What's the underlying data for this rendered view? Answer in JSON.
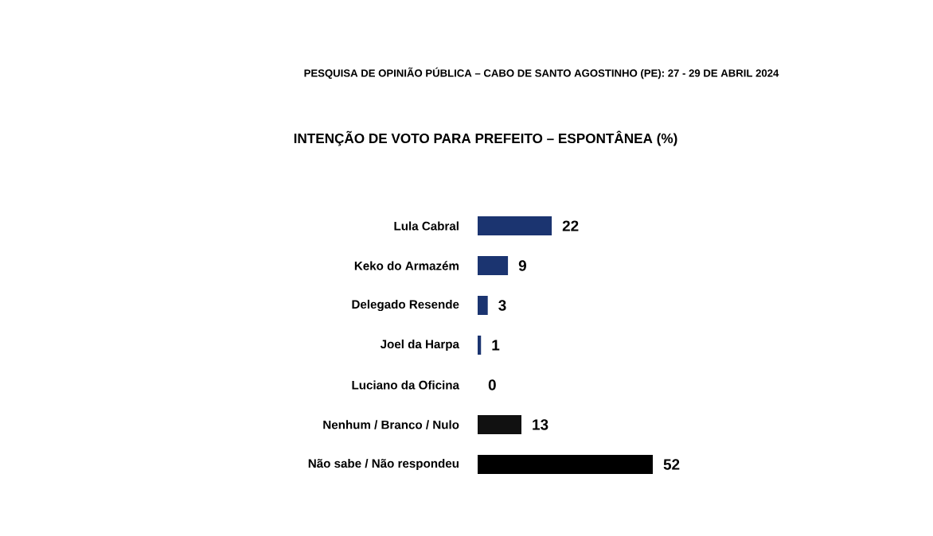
{
  "chart_data": {
    "type": "bar",
    "orientation": "horizontal",
    "subtitle": "PESQUISA DE OPINIÃO PÚBLICA – CABO DE SANTO AGOSTINHO (PE): 27 - 29 DE ABRIL 2024",
    "title": "INTENÇÃO DE VOTO PARA PREFEITO – ESPONTÂNEA (%)",
    "categories": [
      "Lula Cabral",
      "Keko do Armazém",
      "Delegado Resende",
      "Joel da Harpa",
      "Luciano da Oficina",
      "Nenhum / Branco / Nulo",
      "Não sabe / Não respondeu"
    ],
    "values": [
      22,
      9,
      3,
      1,
      0,
      13,
      52
    ],
    "colors": [
      "#1b3470",
      "#1b3470",
      "#1b3470",
      "#1b3470",
      "#1b3470",
      "#111111",
      "#000000"
    ],
    "data_labels": true
  }
}
